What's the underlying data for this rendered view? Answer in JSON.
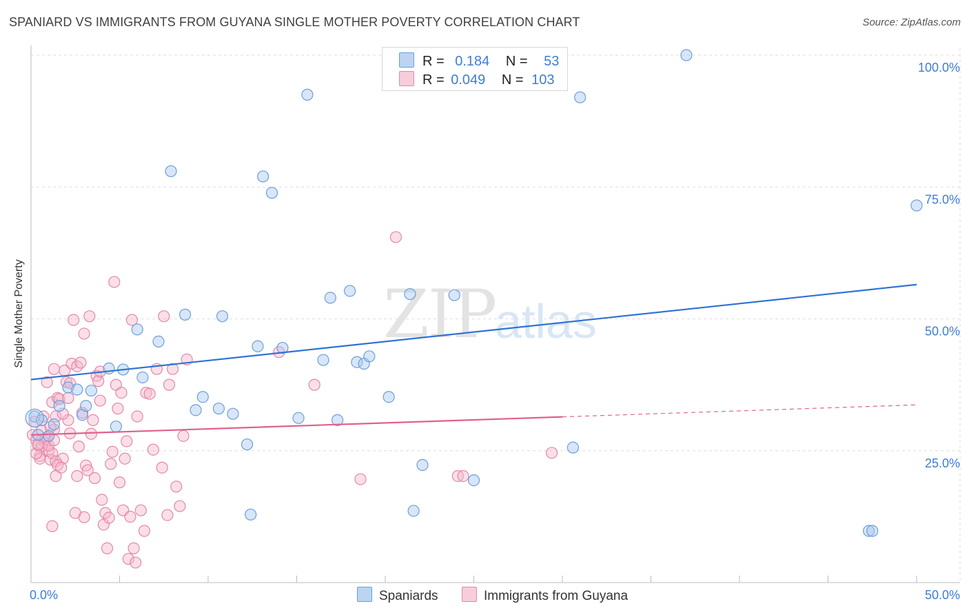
{
  "header": {
    "title": "SPANIARD VS IMMIGRANTS FROM GUYANA SINGLE MOTHER POVERTY CORRELATION CHART",
    "source": "Source: ZipAtlas.com"
  },
  "watermark": {
    "part1": "ZIP",
    "part2": "atlas"
  },
  "legend_top": {
    "rows": [
      {
        "r_label": "R =",
        "r_value": "0.184",
        "n_label": "N =",
        "n_value": "53"
      },
      {
        "r_label": "R =",
        "r_value": "0.049",
        "n_label": "N =",
        "n_value": "103"
      }
    ]
  },
  "legend_bottom": {
    "series_a": "Spaniards",
    "series_b": "Immigrants from Guyana"
  },
  "colors": {
    "blue_fill": "#a9c8ee",
    "blue_stroke": "#6a9edc",
    "blue_line": "#2f72d4",
    "pink_fill": "#f5b8cc",
    "pink_stroke": "#e487a6",
    "pink_line": "#e0608c",
    "tick_text": "#3d7dd4",
    "grid": "#dddddd"
  },
  "chart_data": {
    "type": "scatter",
    "title": "SPANIARD VS IMMIGRANTS FROM GUYANA SINGLE MOTHER POVERTY CORRELATION CHART",
    "xlabel": "",
    "ylabel": "Single Mother Poverty",
    "xlim": [
      0,
      50
    ],
    "ylim": [
      0,
      100
    ],
    "x_ticks": [
      "0.0%",
      "50.0%"
    ],
    "y_ticks": [
      "25.0%",
      "50.0%",
      "75.0%",
      "100.0%"
    ],
    "grid": true,
    "legend": "top-center",
    "series": [
      {
        "name": "Spaniards",
        "color": "blue",
        "R": 0.184,
        "N": 53,
        "trend": {
          "x": [
            0,
            50
          ],
          "y": [
            38.5,
            56.5
          ],
          "dashed_from": null
        },
        "points": [
          [
            0.2,
            31.5
          ],
          [
            0.4,
            28
          ],
          [
            0.6,
            30.8
          ],
          [
            1.0,
            27.8
          ],
          [
            1.3,
            30
          ],
          [
            1.6,
            33.5
          ],
          [
            2.1,
            37
          ],
          [
            2.6,
            36.6
          ],
          [
            2.9,
            31.8
          ],
          [
            3.1,
            33.5
          ],
          [
            3.4,
            36.4
          ],
          [
            4.4,
            40.6
          ],
          [
            4.8,
            29.6
          ],
          [
            5.2,
            40.4
          ],
          [
            6.0,
            48
          ],
          [
            6.3,
            38.9
          ],
          [
            7.2,
            45.7
          ],
          [
            7.9,
            78
          ],
          [
            8.7,
            50.8
          ],
          [
            9.3,
            32.7
          ],
          [
            9.7,
            35.2
          ],
          [
            10.6,
            33
          ],
          [
            10.8,
            50.5
          ],
          [
            11.4,
            32
          ],
          [
            12.2,
            26.2
          ],
          [
            12.4,
            12.9
          ],
          [
            12.8,
            44.8
          ],
          [
            13.1,
            77
          ],
          [
            13.6,
            73.9
          ],
          [
            14.2,
            44.5
          ],
          [
            15.1,
            31.2
          ],
          [
            15.6,
            92.5
          ],
          [
            16.5,
            42.2
          ],
          [
            16.9,
            54
          ],
          [
            17.3,
            30.8
          ],
          [
            18.0,
            55.3
          ],
          [
            18.4,
            41.8
          ],
          [
            18.8,
            41.5
          ],
          [
            19.1,
            42.9
          ],
          [
            20.2,
            35.2
          ],
          [
            21.4,
            54.7
          ],
          [
            21.5,
            100
          ],
          [
            21.6,
            13.6
          ],
          [
            22.1,
            22.3
          ],
          [
            23.9,
            54.5
          ],
          [
            24.6,
            100
          ],
          [
            25.0,
            19.4
          ],
          [
            30.6,
            25.6
          ],
          [
            31.0,
            92
          ],
          [
            37.0,
            100
          ],
          [
            47.3,
            9.8
          ],
          [
            47.5,
            9.8
          ],
          [
            50.0,
            71.5
          ]
        ]
      },
      {
        "name": "Immigrants from Guyana",
        "color": "pink",
        "R": 0.049,
        "N": 103,
        "trend": {
          "x": [
            0,
            50
          ],
          "y": [
            28,
            33.7
          ],
          "dashed_from": 30
        },
        "points": [
          [
            0.1,
            28
          ],
          [
            0.2,
            30.5
          ],
          [
            0.3,
            27
          ],
          [
            0.4,
            26
          ],
          [
            0.5,
            24
          ],
          [
            0.6,
            28.8
          ],
          [
            0.7,
            31.5
          ],
          [
            0.8,
            26.5
          ],
          [
            0.9,
            27.5
          ],
          [
            1.0,
            25
          ],
          [
            1.1,
            23.3
          ],
          [
            1.2,
            24.5
          ],
          [
            1.3,
            29
          ],
          [
            1.4,
            23
          ],
          [
            0.5,
            23.5
          ],
          [
            0.6,
            25.8
          ],
          [
            0.8,
            27.2
          ],
          [
            1.0,
            26
          ],
          [
            1.2,
            34.2
          ],
          [
            1.3,
            40.5
          ],
          [
            1.4,
            31.5
          ],
          [
            1.5,
            35
          ],
          [
            1.6,
            34.8
          ],
          [
            1.8,
            23.5
          ],
          [
            1.4,
            20.2
          ],
          [
            1.5,
            22.3
          ],
          [
            1.7,
            21.8
          ],
          [
            1.9,
            40.2
          ],
          [
            2.0,
            38
          ],
          [
            2.1,
            35
          ],
          [
            2.2,
            37.8
          ],
          [
            2.3,
            41.5
          ],
          [
            2.4,
            49.8
          ],
          [
            2.5,
            13.2
          ],
          [
            2.6,
            41
          ],
          [
            2.7,
            25.8
          ],
          [
            2.8,
            41.7
          ],
          [
            2.9,
            32.2
          ],
          [
            3.0,
            47.2
          ],
          [
            3.1,
            22.2
          ],
          [
            3.2,
            21.3
          ],
          [
            3.3,
            50.5
          ],
          [
            3.4,
            28.2
          ],
          [
            3.5,
            30.8
          ],
          [
            3.6,
            19.8
          ],
          [
            3.7,
            39.2
          ],
          [
            3.8,
            38.2
          ],
          [
            3.9,
            40
          ],
          [
            4.0,
            15.7
          ],
          [
            4.1,
            11
          ],
          [
            4.2,
            13.2
          ],
          [
            4.3,
            6.5
          ],
          [
            4.4,
            12.3
          ],
          [
            4.5,
            22.5
          ],
          [
            4.6,
            24.8
          ],
          [
            4.7,
            57
          ],
          [
            4.8,
            37.5
          ],
          [
            4.9,
            33
          ],
          [
            5.0,
            19
          ],
          [
            5.1,
            36
          ],
          [
            5.2,
            13.7
          ],
          [
            5.3,
            23.5
          ],
          [
            5.4,
            26.8
          ],
          [
            5.5,
            4.5
          ],
          [
            5.6,
            12.5
          ],
          [
            5.7,
            49.8
          ],
          [
            5.8,
            6.5
          ],
          [
            5.9,
            3.8
          ],
          [
            6.0,
            31.5
          ],
          [
            6.2,
            13.7
          ],
          [
            6.4,
            9.8
          ],
          [
            6.5,
            36
          ],
          [
            6.7,
            35.8
          ],
          [
            6.9,
            25.2
          ],
          [
            7.1,
            40.5
          ],
          [
            7.4,
            21.8
          ],
          [
            7.5,
            50.5
          ],
          [
            7.7,
            12.8
          ],
          [
            7.8,
            37.5
          ],
          [
            8.0,
            40.5
          ],
          [
            8.2,
            18.2
          ],
          [
            8.4,
            14.5
          ],
          [
            8.6,
            27.8
          ],
          [
            8.8,
            42.3
          ],
          [
            1.2,
            10.7
          ],
          [
            2.1,
            30.8
          ],
          [
            2.6,
            20.2
          ],
          [
            3.0,
            12.4
          ],
          [
            3.9,
            34.5
          ],
          [
            1.8,
            32
          ],
          [
            0.9,
            38
          ],
          [
            2.2,
            28.3
          ],
          [
            1.1,
            29.5
          ],
          [
            0.3,
            24.5
          ],
          [
            14.0,
            43.7
          ],
          [
            16.0,
            37.5
          ],
          [
            18.6,
            19.6
          ],
          [
            20.6,
            65.5
          ],
          [
            24.1,
            20.2
          ],
          [
            24.4,
            20.2
          ],
          [
            29.4,
            24.6
          ],
          [
            0.4,
            26.2
          ],
          [
            1.3,
            27
          ]
        ]
      }
    ]
  }
}
